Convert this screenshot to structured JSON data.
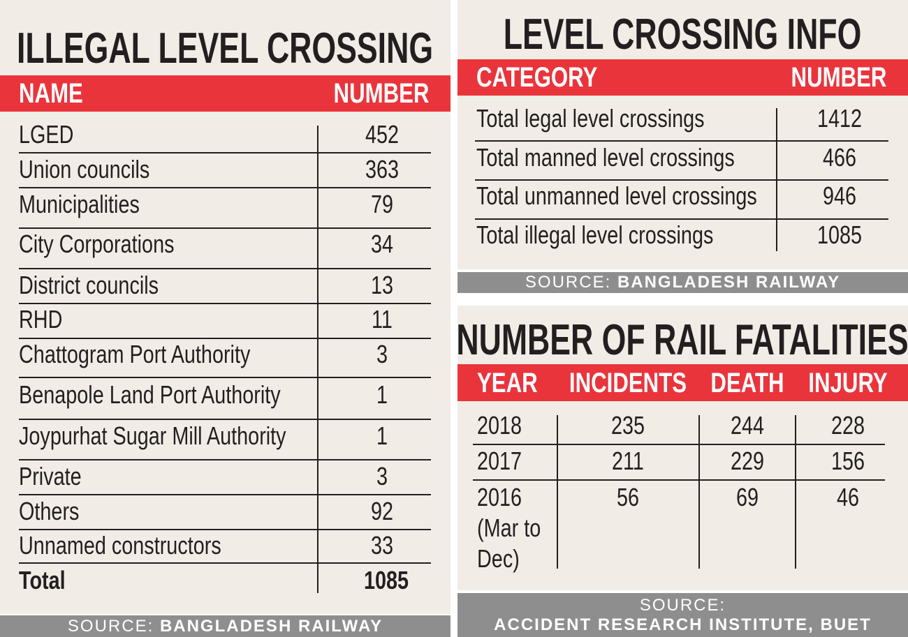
{
  "illegal": {
    "title": "ILLEGAL LEVEL CROSSING",
    "header": [
      "NAME",
      "NUMBER"
    ],
    "rows": [
      [
        "LGED",
        452
      ],
      [
        "Union councils",
        363
      ],
      [
        "Municipalities",
        79
      ],
      [
        "City Corporations",
        34
      ],
      [
        "District councils",
        13
      ],
      [
        "RHD",
        11
      ],
      [
        "Chattogram Port Authority",
        3
      ],
      [
        "Benapole Land Port Authority",
        1
      ],
      [
        "Joypurhat Sugar Mill Authority",
        1
      ],
      [
        "Private",
        3
      ],
      [
        "Others",
        92
      ],
      [
        "Unnamed constructors",
        33
      ]
    ],
    "total": [
      "Total",
      1085
    ],
    "source": {
      "label": "SOURCE:",
      "name": "BANGLADESH RAILWAY"
    }
  },
  "info": {
    "title": "LEVEL CROSSING INFO",
    "header": [
      "CATEGORY",
      "NUMBER"
    ],
    "rows": [
      [
        "Total legal level crossings",
        1412
      ],
      [
        "Total manned level crossings",
        466
      ],
      [
        "Total unmanned level crossings",
        946
      ],
      [
        "Total illegal level crossings",
        1085
      ]
    ],
    "source": {
      "label": "SOURCE:",
      "name": "BANGLADESH RAILWAY"
    }
  },
  "fatalities": {
    "title": "NUMBER OF RAIL FATALITIES",
    "header": [
      "YEAR",
      "INCIDENTS",
      "DEATH",
      "INJURY"
    ],
    "rows": [
      [
        2018,
        235,
        244,
        228
      ],
      [
        2017,
        211,
        229,
        156
      ],
      [
        "2016 (Mar to Dec)",
        56,
        69,
        46
      ]
    ],
    "source": {
      "label": "SOURCE:",
      "name": "ACCIDENT RESEARCH INSTITUTE, BUET"
    }
  }
}
